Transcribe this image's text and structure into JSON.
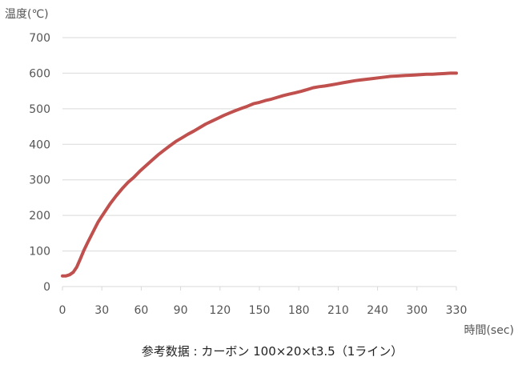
{
  "chart_data": {
    "type": "line",
    "ylabel": "温度(℃)",
    "xlabel": "時間(sec)",
    "caption": "参考数据 : カーボン 100×20×t3.5（1ライン）",
    "x_ticks": [
      "0",
      "30",
      "60",
      "90",
      "120",
      "150",
      "180",
      "210",
      "240",
      "300",
      "330"
    ],
    "xlim": [
      0,
      330
    ],
    "ylim": [
      0,
      700
    ],
    "y_ticks": [
      0,
      100,
      200,
      300,
      400,
      500,
      600,
      700
    ],
    "grid": "horizontal",
    "legend": "none",
    "series": [
      {
        "color": "#c0504d",
        "x": [
          0,
          3,
          6,
          9,
          12,
          15,
          18,
          21,
          24,
          27,
          30,
          35,
          40,
          45,
          50,
          55,
          60,
          65,
          70,
          75,
          80,
          85,
          90,
          95,
          100,
          105,
          110,
          115,
          120,
          125,
          130,
          135,
          140,
          145,
          150,
          155,
          160,
          165,
          170,
          175,
          180,
          185,
          190,
          195,
          200,
          205,
          210,
          215,
          220,
          225,
          230,
          235,
          240,
          245,
          250,
          255,
          260,
          265,
          270,
          275,
          280,
          285,
          290,
          295,
          300,
          305,
          310,
          315,
          320,
          325,
          330
        ],
        "y": [
          30,
          30,
          33,
          40,
          55,
          78,
          102,
          123,
          143,
          163,
          182,
          208,
          233,
          255,
          275,
          293,
          308,
          325,
          340,
          355,
          370,
          383,
          396,
          408,
          418,
          428,
          437,
          447,
          457,
          465,
          473,
          481,
          488,
          495,
          501,
          507,
          514,
          518,
          523,
          527,
          532,
          537,
          541,
          545,
          549,
          554,
          559,
          562,
          564,
          567,
          570,
          573,
          576,
          579,
          581,
          583,
          585,
          587,
          589,
          591,
          592,
          593,
          594,
          595,
          596,
          597,
          597,
          598,
          599,
          600,
          600
        ]
      }
    ]
  }
}
